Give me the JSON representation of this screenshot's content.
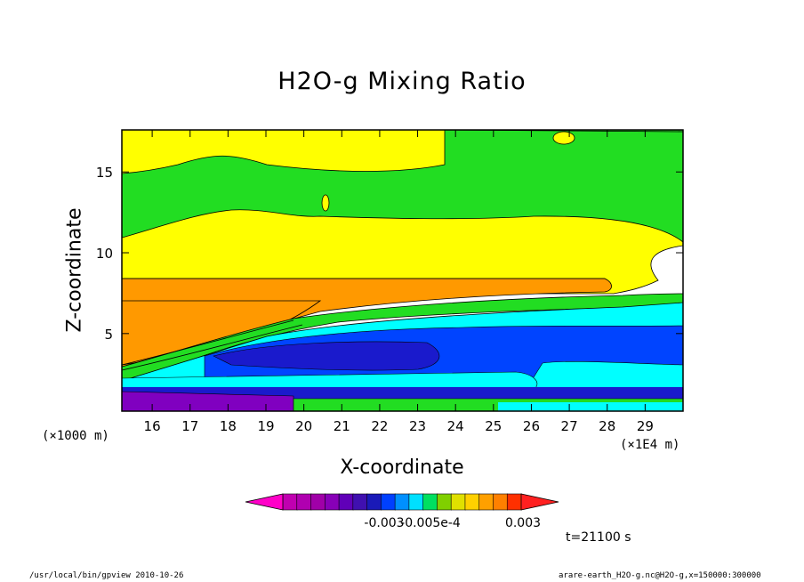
{
  "chart_data": {
    "type": "heatmap",
    "title": "H2O-g Mixing Ratio",
    "xlabel": "X-coordinate",
    "ylabel": "Z-coordinate",
    "x_unit_left": "(×1000 m)",
    "x_unit_right": "(×1E4 m)",
    "xlim": [
      15.2,
      30.0
    ],
    "ylim": [
      0.2,
      17.6
    ],
    "x_ticks": [
      16,
      17,
      18,
      19,
      20,
      21,
      22,
      23,
      24,
      25,
      26,
      27,
      28,
      29
    ],
    "x_tick_labels": [
      "16",
      "17",
      "18",
      "19",
      "20",
      "21",
      "22",
      "23",
      "24",
      "25",
      "26",
      "27",
      "28",
      "29"
    ],
    "y_ticks": [
      5,
      10,
      15
    ],
    "y_tick_labels": [
      "5",
      "10",
      "15"
    ],
    "colorbar": {
      "colors": [
        "#c000b0",
        "#b000b0",
        "#a000a8",
        "#8800b8",
        "#6000b8",
        "#4010b0",
        "#1a1ab8",
        "#0040ff",
        "#0090ff",
        "#00e0ff",
        "#00e060",
        "#80d000",
        "#e0e000",
        "#ffd000",
        "#ffa000",
        "#ff8000",
        "#ff3000"
      ],
      "tick_labels": [
        "-0.003",
        "-0.005e-4",
        "0.003"
      ]
    },
    "time_label": "t=21100 s",
    "regions": [
      {
        "name": "upper-green",
        "color": "#22dd22",
        "value_band": "mid-positive"
      },
      {
        "name": "upper-yellow",
        "color": "#ffff00",
        "value_band": "high-positive"
      },
      {
        "name": "orange-layer",
        "color": "#ff9900",
        "value_band": "max-positive"
      },
      {
        "name": "cyan-layer",
        "color": "#00ffff",
        "value_band": "near-zero"
      },
      {
        "name": "blue-layer",
        "color": "#0044ff",
        "value_band": "negative"
      },
      {
        "name": "dark-blue-layer",
        "color": "#1a1acc",
        "value_band": "negative"
      },
      {
        "name": "purple-layer",
        "color": "#8000c0",
        "value_band": "strong-negative"
      }
    ]
  },
  "footer": {
    "left": "/usr/local/bin/gpview  2010-10-26",
    "right": "arare-earth_H2O-g.nc@H2O-g,x=150000:300000"
  }
}
